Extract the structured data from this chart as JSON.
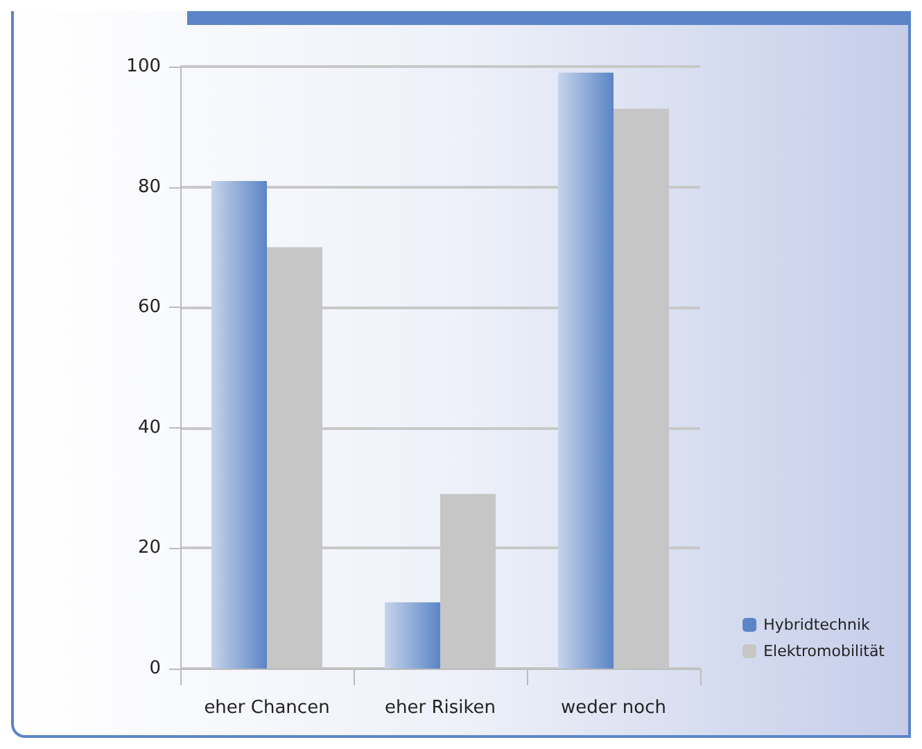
{
  "chart_data": {
    "type": "bar",
    "categories": [
      "eher Chancen",
      "eher Risiken",
      "weder noch"
    ],
    "series": [
      {
        "name": "Hybridtechnik",
        "color": "#5b85c6",
        "values": [
          81,
          11,
          99
        ]
      },
      {
        "name": "Elektromobilität",
        "color": "#c6c6c6",
        "values": [
          70,
          29,
          93
        ]
      }
    ],
    "ylim": [
      0,
      100
    ],
    "yticks": [
      0,
      20,
      40,
      60,
      80,
      100
    ],
    "grid": "y",
    "legend": "bottom right"
  }
}
